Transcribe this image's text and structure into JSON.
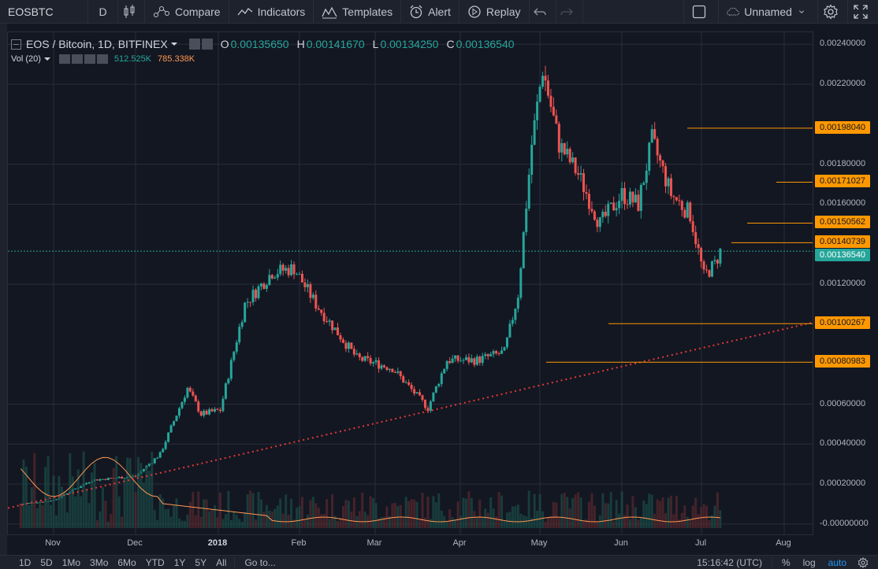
{
  "toolbar": {
    "symbol": "EOSBTC",
    "interval": "D",
    "compare_label": "Compare",
    "indicators_label": "Indicators",
    "templates_label": "Templates",
    "alert_label": "Alert",
    "replay_label": "Replay",
    "layout_name": "Unnamed"
  },
  "legend": {
    "title": "EOS / Bitcoin, 1D, BITFINEX",
    "open_key": "O",
    "open": "0.00135650",
    "high_key": "H",
    "high": "0.00141670",
    "low_key": "L",
    "low": "0.00134250",
    "close_key": "C",
    "close": "0.00136540",
    "volume_label": "Vol (20)",
    "volume_value": "512.525K",
    "volume_ma": "785.338K"
  },
  "price_axis": {
    "ticks": [
      "0.00240000",
      "0.00220000",
      "0.00180000",
      "0.00160000",
      "0.00120000",
      "0.00060000",
      "0.00040000",
      "0.00020000",
      "-0.00000000"
    ],
    "tick_values": [
      0.0024,
      0.0022,
      0.0018,
      0.0016,
      0.0012,
      0.0006,
      0.0004,
      0.0002,
      0.0
    ],
    "level_badges": [
      "0.00198040",
      "0.00171027",
      "0.00150562",
      "0.00140739",
      "0.00100267",
      "0.00080983"
    ],
    "level_values": [
      0.0019804,
      0.00171027,
      0.00150562,
      0.00140739,
      0.00100267,
      0.00080983
    ],
    "current_price": "0.00136540",
    "current_value": 0.0013654
  },
  "time_axis": {
    "labels": [
      "Nov",
      "Dec",
      "2018",
      "Feb",
      "Mar",
      "Apr",
      "May",
      "Jun",
      "Jul",
      "Aug"
    ]
  },
  "bottom_bar": {
    "ranges": [
      "1D",
      "5D",
      "1Mo",
      "3Mo",
      "6Mo",
      "YTD",
      "1Y",
      "5Y",
      "All"
    ],
    "goto_label": "Go to...",
    "clock": "15:16:42 (UTC)",
    "percent_label": "%",
    "log_label": "log",
    "auto_label": "auto"
  },
  "chart_data": {
    "type": "candlestick",
    "title": "EOS / Bitcoin, 1D, BITFINEX",
    "x_labels": [
      "Nov",
      "Dec",
      "2018",
      "Feb",
      "Mar",
      "Apr",
      "May",
      "Jun",
      "Jul",
      "Aug"
    ],
    "price_points": [
      [
        "Oct 20",
        0.0001
      ],
      [
        "Nov 1",
        0.00012
      ],
      [
        "Nov 15",
        0.00022
      ],
      [
        "Dec 1",
        0.00024
      ],
      [
        "Dec 10",
        0.00035
      ],
      [
        "Dec 20",
        0.00068
      ],
      [
        "Dec 25",
        0.00055
      ],
      [
        "Jan 1",
        0.00057
      ],
      [
        "Jan 10",
        0.0011
      ],
      [
        "Jan 20",
        0.00126
      ],
      [
        "Jan 28",
        0.00128
      ],
      [
        "Feb 5",
        0.0011
      ],
      [
        "Feb 20",
        0.00083
      ],
      [
        "Mar 5",
        0.00078
      ],
      [
        "Mar 18",
        0.00058
      ],
      [
        "Mar 25",
        0.00082
      ],
      [
        "Apr 5",
        0.00082
      ],
      [
        "Apr 15",
        0.00086
      ],
      [
        "Apr 20",
        0.00115
      ],
      [
        "Apr 25",
        0.0019
      ],
      [
        "Apr 29",
        0.00228
      ],
      [
        "May 5",
        0.0019
      ],
      [
        "May 12",
        0.00175
      ],
      [
        "May 20",
        0.0015
      ],
      [
        "May 28",
        0.00165
      ],
      [
        "Jun 3",
        0.0016
      ],
      [
        "Jun 8",
        0.00192
      ],
      [
        "Jun 15",
        0.00165
      ],
      [
        "Jun 22",
        0.00155
      ],
      [
        "Jun 27",
        0.00124
      ],
      [
        "Jul 1",
        0.0013
      ],
      [
        "Jul 3",
        0.0013654
      ]
    ],
    "horizontal_levels": [
      0.0019804,
      0.00171027,
      0.00150562,
      0.00140739,
      0.00100267,
      0.00080983
    ],
    "trendline": {
      "style": "dotted",
      "color": "#e53935"
    },
    "ylim": [
      -2e-05,
      0.00246
    ],
    "grid": true
  },
  "colors": {
    "up": "#26a69a",
    "down": "#ef5350",
    "level": "#ff9800",
    "trend": "#e53935",
    "vol_ma": "#ff9850",
    "grid": "#2a2e39",
    "bg": "#131722"
  }
}
